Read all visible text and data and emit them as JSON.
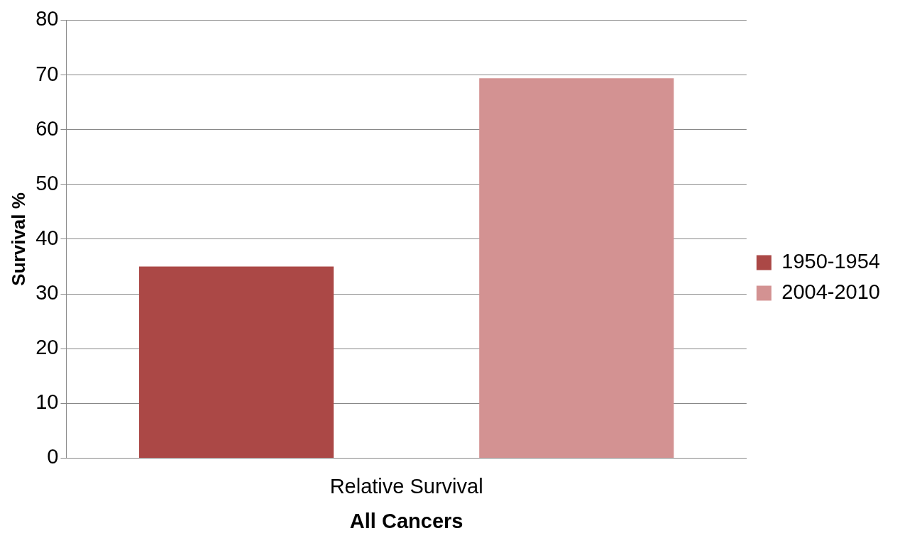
{
  "chart_data": {
    "type": "bar",
    "xlabel": "All Cancers",
    "ylabel": "Survival %",
    "categories": [
      "Relative Survival"
    ],
    "series": [
      {
        "name": "1950-1954",
        "color": "#ab4846",
        "values": [
          35
        ]
      },
      {
        "name": "2004-2010",
        "color": "#d39292",
        "values": [
          69.4
        ]
      }
    ],
    "ylim": [
      0,
      80
    ],
    "yticks": [
      0,
      10,
      20,
      30,
      40,
      50,
      60,
      70,
      80
    ],
    "grid": "y",
    "legend": "right"
  }
}
